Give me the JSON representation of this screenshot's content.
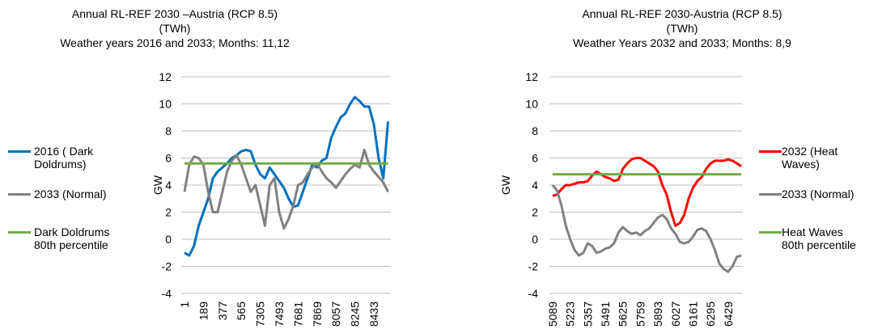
{
  "chart_data": [
    {
      "type": "line",
      "title": [
        "Annual RL-REF 2030 –Austria (RCP 8.5)",
        "(TWh)",
        "Weather years 2016 and 2033; Months: 11,12"
      ],
      "ylabel": "GW",
      "ylim": [
        -4,
        12
      ],
      "yticks": [
        -4,
        -2,
        0,
        2,
        4,
        6,
        8,
        10,
        12
      ],
      "grid": true,
      "legend": "left",
      "categories": [
        "1",
        null,
        null,
        null,
        "189",
        null,
        null,
        null,
        "377",
        null,
        null,
        null,
        "565",
        null,
        null,
        null,
        "7305",
        null,
        null,
        null,
        "7493",
        null,
        null,
        null,
        "7681",
        null,
        null,
        null,
        "7869",
        null,
        null,
        null,
        "8057",
        null,
        null,
        null,
        "8245",
        null,
        null,
        null,
        "8433",
        null,
        null,
        null
      ],
      "series": [
        {
          "name": "2016 ( Dark Doldrums)",
          "color": "#0070c0",
          "values": [
            -1,
            -1.2,
            -0.5,
            1,
            2,
            3,
            4.5,
            5,
            5.3,
            5.6,
            6,
            6.2,
            6.5,
            6.6,
            6.5,
            5.5,
            4.8,
            4.5,
            5.3,
            4.8,
            4.3,
            3.8,
            3,
            2.4,
            2.5,
            3.5,
            4.5,
            5.5,
            5.3,
            5.8,
            6,
            7.5,
            8.3,
            9,
            9.3,
            10,
            10.5,
            10.2,
            9.8,
            9.8,
            8.5,
            6,
            4.5,
            8.7
          ]
        },
        {
          "name": "2033 (Normal)",
          "color": "#808080",
          "values": [
            3.5,
            5.5,
            6.1,
            6,
            5.5,
            3.5,
            2,
            2,
            3.5,
            5,
            5.8,
            6.2,
            5.5,
            4.5,
            3.5,
            4,
            2.5,
            1,
            4,
            4.5,
            2,
            0.8,
            1.5,
            2.5,
            4,
            4.2,
            4.8,
            5.3,
            5.6,
            5,
            4.5,
            4.2,
            3.8,
            4.3,
            4.8,
            5.2,
            5.5,
            5.3,
            6.6,
            5.5,
            5,
            4.6,
            4.2,
            3.5
          ]
        },
        {
          "name": "Dark Doldrums 80th percentile",
          "color": "#70ad47",
          "values": [
            5.6,
            5.6,
            5.6,
            5.6,
            5.6,
            5.6,
            5.6,
            5.6,
            5.6,
            5.6,
            5.6,
            5.6,
            5.6,
            5.6,
            5.6,
            5.6,
            5.6,
            5.6,
            5.6,
            5.6,
            5.6,
            5.6,
            5.6,
            5.6,
            5.6,
            5.6,
            5.6,
            5.6,
            5.6,
            5.6,
            5.6,
            5.6,
            5.6,
            5.6,
            5.6,
            5.6,
            5.6,
            5.6,
            5.6,
            5.6,
            5.6,
            5.6,
            5.6,
            5.6
          ]
        }
      ]
    },
    {
      "type": "line",
      "title": [
        "Annual RL-REF 2030-Austria (RCP 8.5)",
        "(TWh)",
        "Weather Years 2032 and 2033; Months: 8,9"
      ],
      "ylabel": "GW",
      "ylim": [
        -4,
        12
      ],
      "yticks": [
        -4,
        -2,
        0,
        2,
        4,
        6,
        8,
        10,
        12
      ],
      "grid": true,
      "legend": "right",
      "categories": [
        "5089",
        null,
        null,
        null,
        "5223",
        null,
        null,
        null,
        "5357",
        null,
        null,
        null,
        "5491",
        null,
        null,
        null,
        "5625",
        null,
        null,
        null,
        "5759",
        null,
        null,
        null,
        "5893",
        null,
        null,
        null,
        "6027",
        null,
        null,
        null,
        "6161",
        null,
        null,
        null,
        "6295",
        null,
        null,
        null,
        "6429",
        null,
        null,
        null
      ],
      "series": [
        {
          "name": "2032 (Heat Waves)",
          "color": "#ff0000",
          "values": [
            3.2,
            3.3,
            3.7,
            4,
            4,
            4.1,
            4.2,
            4.2,
            4.3,
            4.7,
            5,
            4.8,
            4.6,
            4.5,
            4.3,
            4.4,
            5.2,
            5.6,
            5.9,
            6,
            6,
            5.8,
            5.6,
            5.4,
            5,
            4,
            3.3,
            2,
            1,
            1.2,
            1.8,
            3,
            3.8,
            4.3,
            4.6,
            5.2,
            5.6,
            5.8,
            5.8,
            5.8,
            5.9,
            5.8,
            5.6,
            5.4
          ]
        },
        {
          "name": "2033 (Normal)",
          "color": "#808080",
          "values": [
            4,
            3.6,
            2.5,
            1,
            0,
            -0.8,
            -1.2,
            -1,
            -0.3,
            -0.5,
            -1,
            -0.9,
            -0.7,
            -0.6,
            -0.3,
            0.5,
            0.9,
            0.6,
            0.4,
            0.5,
            0.3,
            0.6,
            0.8,
            1.2,
            1.6,
            1.8,
            1.5,
            0.8,
            0.4,
            -0.2,
            -0.3,
            -0.2,
            0.2,
            0.7,
            0.8,
            0.6,
            0,
            -0.8,
            -1.8,
            -2.2,
            -2.4,
            -2,
            -1.3,
            -1.2
          ]
        },
        {
          "name": "Heat Waves 80th percentile",
          "color": "#70ad47",
          "values": [
            4.8,
            4.8,
            4.8,
            4.8,
            4.8,
            4.8,
            4.8,
            4.8,
            4.8,
            4.8,
            4.8,
            4.8,
            4.8,
            4.8,
            4.8,
            4.8,
            4.8,
            4.8,
            4.8,
            4.8,
            4.8,
            4.8,
            4.8,
            4.8,
            4.8,
            4.8,
            4.8,
            4.8,
            4.8,
            4.8,
            4.8,
            4.8,
            4.8,
            4.8,
            4.8,
            4.8,
            4.8,
            4.8,
            4.8,
            4.8,
            4.8,
            4.8,
            4.8,
            4.8
          ]
        }
      ]
    }
  ]
}
